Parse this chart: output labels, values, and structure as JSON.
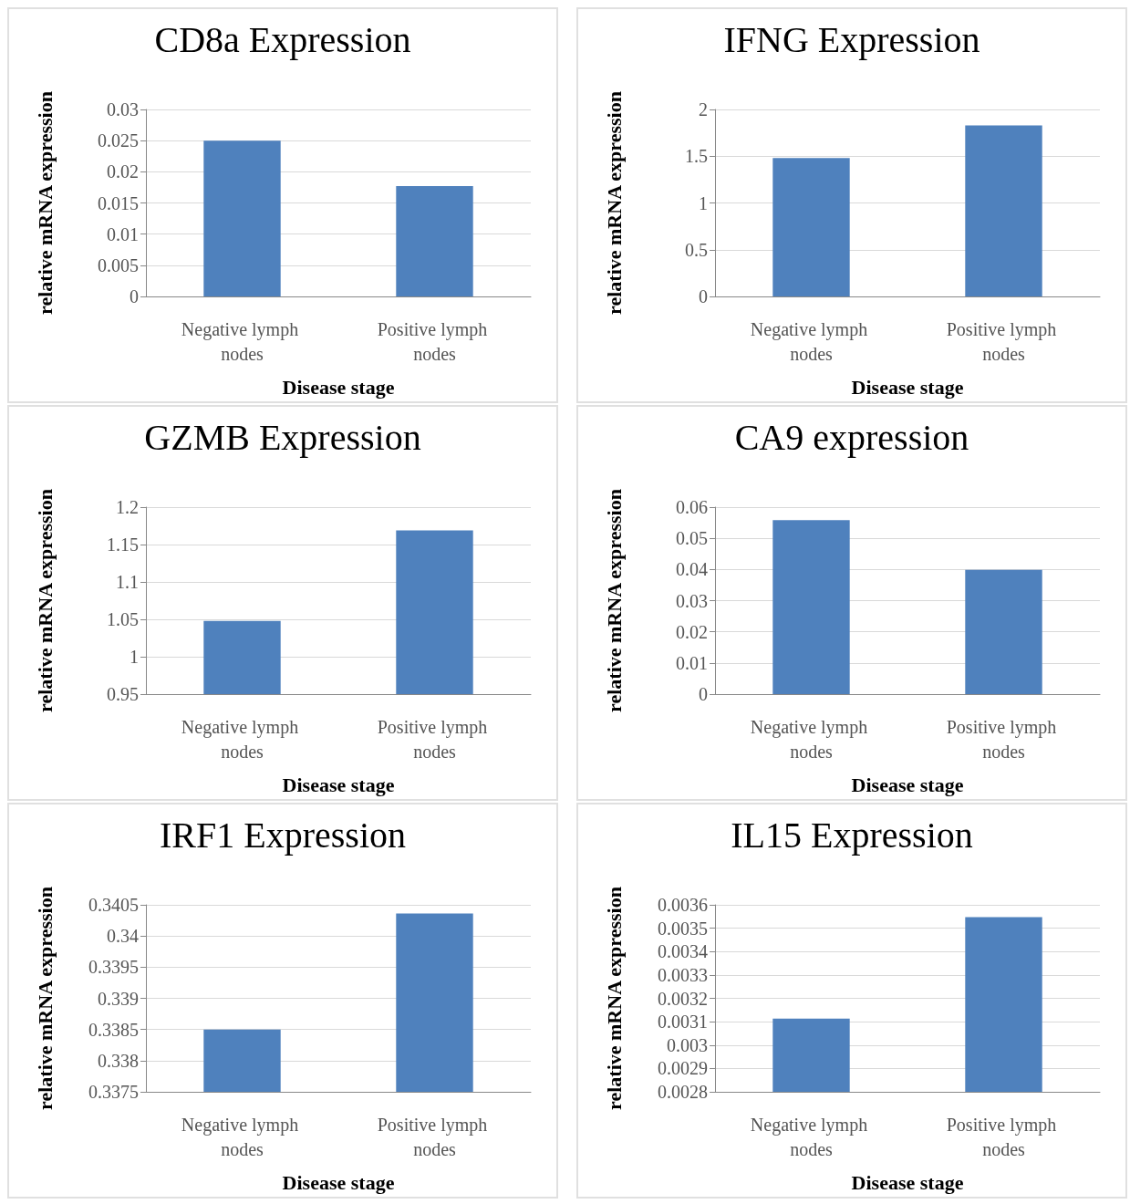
{
  "chart_data": [
    {
      "type": "bar",
      "title": "CD8a Expression",
      "xlabel": "Disease stage",
      "ylabel": "relative mRNA expression",
      "categories": [
        "Negative lymph nodes",
        "Positive lymph nodes"
      ],
      "values": [
        0.025,
        0.0177
      ],
      "color": "#4f81bd",
      "ylim": [
        0,
        0.03
      ],
      "yticks": [
        0,
        0.005,
        0.01,
        0.015,
        0.02,
        0.025,
        0.03
      ],
      "grid": "y"
    },
    {
      "type": "bar",
      "title": "IFNG Expression",
      "xlabel": "Disease stage",
      "ylabel": "relative mRNA expression",
      "categories": [
        "Negative lymph nodes",
        "Positive lymph nodes"
      ],
      "values": [
        1.48,
        1.83
      ],
      "color": "#4f81bd",
      "ylim": [
        0,
        2
      ],
      "yticks": [
        0,
        0.5,
        1,
        1.5,
        2
      ],
      "grid": "y"
    },
    {
      "type": "bar",
      "title": "GZMB Expression",
      "xlabel": "Disease stage",
      "ylabel": "relative mRNA expression",
      "categories": [
        "Negative lymph nodes",
        "Positive lymph nodes"
      ],
      "values": [
        1.048,
        1.169
      ],
      "color": "#4f81bd",
      "ylim": [
        0.95,
        1.2
      ],
      "yticks": [
        0.95,
        1,
        1.05,
        1.1,
        1.15,
        1.2
      ],
      "grid": "y"
    },
    {
      "type": "bar",
      "title": "CA9 expression",
      "xlabel": "Disease stage",
      "ylabel": "relative mRNA expression",
      "categories": [
        "Negative lymph nodes",
        "Positive lymph nodes"
      ],
      "values": [
        0.0558,
        0.0399
      ],
      "color": "#4f81bd",
      "ylim": [
        0,
        0.06
      ],
      "yticks": [
        0,
        0.01,
        0.02,
        0.03,
        0.04,
        0.05,
        0.06
      ],
      "grid": "y"
    },
    {
      "type": "bar",
      "title": "IRF1 Expression",
      "xlabel": "Disease stage",
      "ylabel": "relative mRNA expression",
      "categories": [
        "Negative lymph nodes",
        "Positive lymph nodes"
      ],
      "values": [
        0.3385,
        0.34036
      ],
      "color": "#4f81bd",
      "ylim": [
        0.3375,
        0.3405
      ],
      "yticks": [
        0.3375,
        0.338,
        0.3385,
        0.339,
        0.3395,
        0.34,
        0.3405
      ],
      "grid": "y"
    },
    {
      "type": "bar",
      "title": "IL15 Expression",
      "xlabel": "Disease stage",
      "ylabel": "relative mRNA expression",
      "categories": [
        "Negative lymph nodes",
        "Positive lymph nodes"
      ],
      "values": [
        0.003113,
        0.003547
      ],
      "color": "#4f81bd",
      "ylim": [
        0.0028,
        0.0036
      ],
      "yticks": [
        0.0028,
        0.0029,
        0.003,
        0.0031,
        0.0032,
        0.0033,
        0.0034,
        0.0035,
        0.0036
      ],
      "grid": "y"
    }
  ]
}
